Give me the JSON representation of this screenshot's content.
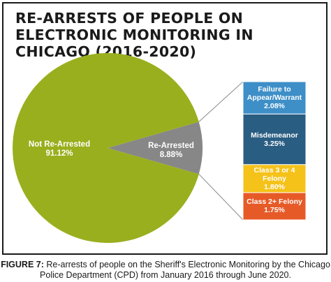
{
  "title": "RE-ARRESTS OF PEOPLE ON ELECTRONIC MONITORING IN CHICAGO (2016-2020)",
  "caption": {
    "lead": "FIGURE 7:",
    "text": " Re-arrests of people on the Sheriff's Electronic Monitoring by the Chicago Police Department (CPD) from January 2016 through June 2020."
  },
  "chart_data": [
    {
      "type": "pie",
      "title": "RE-ARRESTS OF PEOPLE ON ELECTRONIC MONITORING IN CHICAGO (2016-2020)",
      "slices": [
        {
          "label": "Not Re-Arrested",
          "display": "91.12%",
          "value": 91.12,
          "color": "#9aaf1e"
        },
        {
          "label": "Re-Arrested",
          "display": "8.88%",
          "value": 8.88,
          "color": "#878787"
        }
      ]
    },
    {
      "type": "bar",
      "stacked": true,
      "segments": [
        {
          "label": "Failure to Appear/Warrant",
          "display": "2.08%",
          "value": 2.08,
          "color": "#3e8fc8"
        },
        {
          "label": "Misdemeanor",
          "display": "3.25%",
          "value": 3.25,
          "color": "#2a5d82"
        },
        {
          "label": "Class 3 or 4 Felony",
          "display": "1.80%",
          "value": 1.8,
          "color": "#f5c21a"
        },
        {
          "label": "Class 2+ Felony",
          "display": "1.75%",
          "value": 1.75,
          "color": "#e65a28"
        }
      ]
    }
  ]
}
